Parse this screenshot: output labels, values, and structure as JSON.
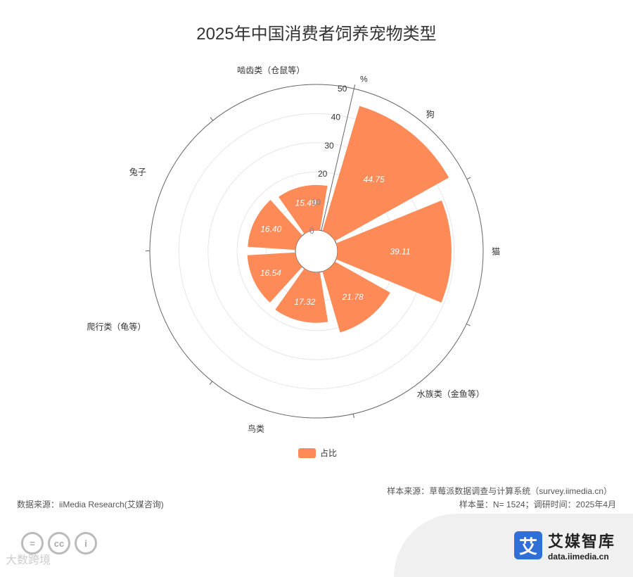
{
  "title": "2025年中国消费者饲养宠物类型",
  "chart_data": {
    "type": "bar",
    "subtype": "polar-rose",
    "categories": [
      "狗",
      "猫",
      "水族类（金鱼等）",
      "鸟类",
      "爬行类（龟等）",
      "兔子",
      "啮齿类（仓鼠等）"
    ],
    "series": [
      {
        "name": "占比",
        "values": [
          44.75,
          39.11,
          21.78,
          17.32,
          16.54,
          16.4,
          15.49
        ],
        "color": "#fd8a57"
      }
    ],
    "radial_axis": {
      "unit": "%",
      "min": 0,
      "max": 50,
      "ticks": [
        0,
        10,
        20,
        30,
        40,
        50
      ]
    },
    "grid": true,
    "legend": "bottom-center"
  },
  "legend": {
    "label": "占比",
    "color": "#fd8a57"
  },
  "footer": {
    "source_left": "数据来源：iiMedia Research(艾媒咨询)",
    "sample_source": "样本来源：草莓派数据调查与计算系统（survey.iimedia.cn）",
    "sample_size": "样本量：N= 1524；调研时间：2025年4月"
  },
  "brand": {
    "name": "艾媒智库",
    "url": "data.iimedia.cn",
    "logo_char": "艾"
  },
  "watermark": "大数跨境",
  "icons": [
    "cc-by-nd-icon",
    "cc-icon",
    "person-icon"
  ]
}
